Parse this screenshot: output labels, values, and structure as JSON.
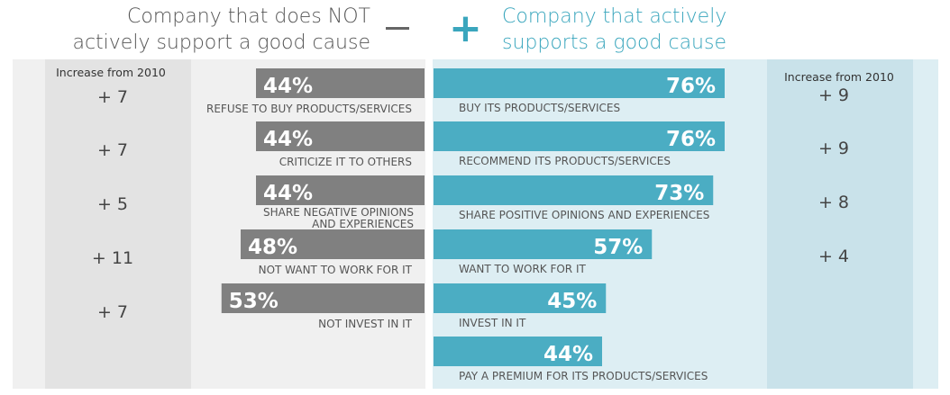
{
  "header": {
    "left_line1": "Company that does NOT",
    "left_line2": "actively support a good cause",
    "right_line1": "Company that actively",
    "right_line2": "supports a good cause",
    "minus_symbol": "—",
    "plus_symbol": "+"
  },
  "increase_label_left": "Increase from 2010",
  "increase_label_right": "Increase from 2010",
  "colors": {
    "negative_bar": "#808080",
    "positive_bar": "#4badc3",
    "left_bg": "#f0f0f0",
    "left_inc_bg": "#e3e3e3",
    "right_bg": "#ddeef3",
    "right_inc_bg": "#c9e2ea",
    "header_left": "#555555",
    "header_right": "#3aa6bd"
  },
  "chart_data": {
    "type": "bar",
    "negative": {
      "name": "Company that does NOT actively support a good cause",
      "categories": [
        "REFUSE TO BUY PRODUCTS/SERVICES",
        "CRITICIZE IT TO OTHERS",
        "SHARE NEGATIVE OPINIONS AND EXPERIENCES",
        "NOT WANT TO WORK FOR IT",
        "NOT INVEST IN IT"
      ],
      "values": [
        44,
        44,
        44,
        48,
        53
      ],
      "labels": [
        "44%",
        "44%",
        "44%",
        "48%",
        "53%"
      ],
      "increase_labels": [
        "+ 7",
        "+ 7",
        "+ 5",
        "+ 11",
        "+ 7"
      ],
      "increase_values": [
        7,
        7,
        5,
        11,
        7
      ]
    },
    "positive": {
      "name": "Company that actively supports a good cause",
      "categories": [
        "BUY ITS PRODUCTS/SERVICES",
        "RECOMMEND ITS PRODUCTS/SERVICES",
        "SHARE POSITIVE OPINIONS AND EXPERIENCES",
        "WANT TO WORK FOR IT",
        "INVEST IN IT",
        "PAY A PREMIUM FOR ITS PRODUCTS/SERVICES"
      ],
      "values": [
        76,
        76,
        73,
        57,
        45,
        44
      ],
      "labels": [
        "76%",
        "76%",
        "73%",
        "57%",
        "45%",
        "44%"
      ],
      "increase_labels": [
        "+ 9",
        "+ 9",
        "+ 8",
        "+ 4"
      ],
      "increase_values": [
        9,
        9,
        8,
        4
      ]
    },
    "xlim": [
      0,
      100
    ],
    "grid": false
  }
}
